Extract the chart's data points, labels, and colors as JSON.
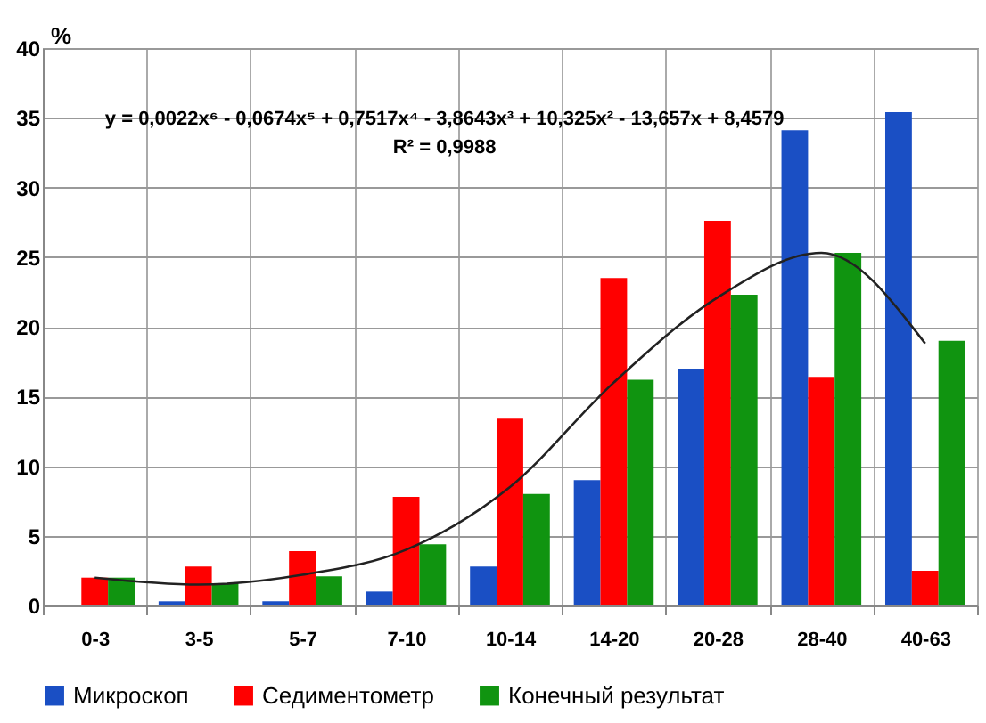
{
  "chart_data": {
    "type": "bar",
    "ylabel": "%",
    "categories": [
      "0-3",
      "3-5",
      "5-7",
      "7-10",
      "10-14",
      "14-20",
      "20-28",
      "28-40",
      "40-63"
    ],
    "series": [
      {
        "name": "Микроскоп",
        "color": "#1a4fc4",
        "values": [
          0,
          0.3,
          0.3,
          1.0,
          2.8,
          9.0,
          17.0,
          34.1,
          35.4
        ]
      },
      {
        "name": "Седиментометр",
        "color": "#ff0000",
        "values": [
          2.0,
          2.8,
          3.9,
          7.8,
          13.4,
          23.5,
          27.6,
          16.4,
          2.5
        ]
      },
      {
        "name": "Конечный результат",
        "color": "#109410",
        "values": [
          2.0,
          1.6,
          2.1,
          4.4,
          8.0,
          16.2,
          22.3,
          25.3,
          19.0
        ]
      },
      {
        "type": "line",
        "color": "#222222",
        "values": [
          2.0,
          1.5,
          2.2,
          4.0,
          8.5,
          16.0,
          22.1,
          25.3,
          18.8
        ]
      }
    ],
    "ylim": [
      0,
      40
    ],
    "yticks": [
      0,
      5,
      10,
      15,
      20,
      25,
      30,
      35,
      40
    ],
    "grid": true,
    "legend": "bottom",
    "annotations": [
      "y = 0,0022x⁶ - 0,0674x⁵ + 0,7517x⁴ - 3,8643x³ + 10,325x² - 13,657x + 8,4579",
      "R² = 0,9988"
    ]
  }
}
